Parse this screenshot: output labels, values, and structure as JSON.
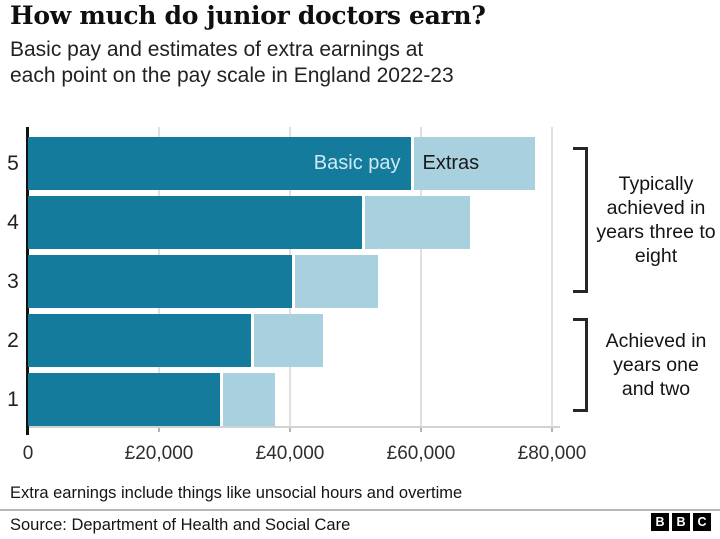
{
  "header": {
    "title": "How much do junior doctors earn?",
    "subtitle_lines": [
      "Basic pay and estimates of extra earnings at",
      "each point on the pay scale in England 2022-23"
    ]
  },
  "chart_data": {
    "type": "bar",
    "orientation": "horizontal",
    "stacked": true,
    "categories": [
      "5",
      "4",
      "3",
      "2",
      "1"
    ],
    "series": [
      {
        "name": "Basic pay",
        "values": [
          58398,
          51017,
          40257,
          34012,
          29384
        ],
        "color": "#147b9d"
      },
      {
        "name": "Extras",
        "values": [
          19000,
          16500,
          13200,
          11000,
          8300
        ],
        "color": "#a9d0df"
      }
    ],
    "x_ticks": [
      {
        "value": 0,
        "label": "0"
      },
      {
        "value": 20000,
        "label": "£20,000"
      },
      {
        "value": 40000,
        "label": "£40,000"
      },
      {
        "value": 60000,
        "label": "£60,000"
      },
      {
        "value": 80000,
        "label": "£80,000"
      }
    ],
    "xlim": [
      0,
      80000
    ],
    "grid": "vertical",
    "legend_position": "inside-top-bar",
    "annotations": [
      {
        "label": "Typically achieved in years three to eight",
        "spans_bars": [
          "3",
          "4",
          "5"
        ]
      },
      {
        "label": "Achieved in years one and two",
        "spans_bars": [
          "1",
          "2"
        ]
      }
    ]
  },
  "colors": {
    "basic_pay": "#147b9d",
    "extras": "#a9d0df",
    "legend_basic_text": "#cfe9f2",
    "grid": "#e0e0e0",
    "axis": "#121212"
  },
  "footer": {
    "note": "Extra earnings include things like unsocial hours and overtime",
    "source": "Source: Department of Health and Social Care",
    "logo_letters": [
      "B",
      "B",
      "C"
    ]
  }
}
